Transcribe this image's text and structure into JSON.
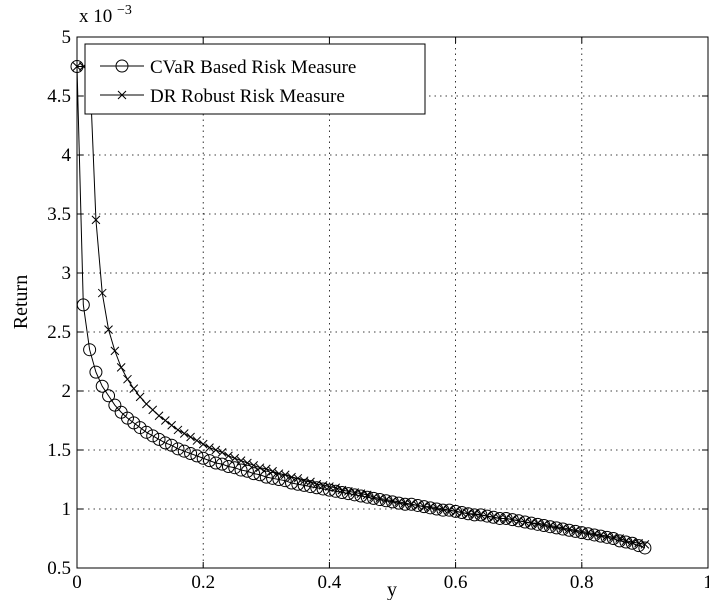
{
  "chart_data": {
    "type": "line",
    "xlabel": "y",
    "ylabel": "Return",
    "y_scale_label": "x 10",
    "y_scale_exponent": "−3",
    "xlim": [
      0,
      1
    ],
    "ylim": [
      0.5,
      5
    ],
    "grid": true,
    "legend_position": "top-left",
    "xticks": [
      "0",
      "0.2",
      "0.4",
      "0.6",
      "0.8",
      "1"
    ],
    "yticks": [
      "0.5",
      "1",
      "1.5",
      "2",
      "2.5",
      "3",
      "3.5",
      "4",
      "4.5",
      "5"
    ],
    "series": [
      {
        "name": "CVaR Based Risk Measure",
        "marker": "circle",
        "x": [
          0,
          0.01,
          0.02,
          0.03,
          0.04,
          0.05,
          0.06,
          0.07,
          0.08,
          0.09,
          0.1,
          0.11,
          0.12,
          0.13,
          0.14,
          0.15,
          0.16,
          0.17,
          0.18,
          0.19,
          0.2,
          0.21,
          0.22,
          0.23,
          0.24,
          0.25,
          0.26,
          0.27,
          0.28,
          0.29,
          0.3,
          0.31,
          0.32,
          0.33,
          0.34,
          0.35,
          0.36,
          0.37,
          0.38,
          0.39,
          0.4,
          0.41,
          0.42,
          0.43,
          0.44,
          0.45,
          0.46,
          0.47,
          0.48,
          0.49,
          0.5,
          0.51,
          0.52,
          0.53,
          0.54,
          0.55,
          0.56,
          0.57,
          0.58,
          0.59,
          0.6,
          0.61,
          0.62,
          0.63,
          0.64,
          0.65,
          0.66,
          0.67,
          0.68,
          0.69,
          0.7,
          0.71,
          0.72,
          0.73,
          0.74,
          0.75,
          0.76,
          0.77,
          0.78,
          0.79,
          0.8,
          0.81,
          0.82,
          0.83,
          0.84,
          0.85,
          0.86,
          0.87,
          0.88,
          0.89,
          0.9
        ],
        "values": [
          4.75,
          2.73,
          2.35,
          2.16,
          2.04,
          1.96,
          1.88,
          1.82,
          1.77,
          1.73,
          1.69,
          1.65,
          1.62,
          1.59,
          1.56,
          1.54,
          1.51,
          1.49,
          1.47,
          1.45,
          1.43,
          1.41,
          1.39,
          1.38,
          1.36,
          1.35,
          1.33,
          1.32,
          1.3,
          1.29,
          1.27,
          1.26,
          1.25,
          1.24,
          1.22,
          1.21,
          1.2,
          1.19,
          1.18,
          1.17,
          1.16,
          1.15,
          1.14,
          1.13,
          1.12,
          1.11,
          1.1,
          1.09,
          1.08,
          1.07,
          1.06,
          1.05,
          1.04,
          1.04,
          1.03,
          1.02,
          1.01,
          1.0,
          0.99,
          0.99,
          0.98,
          0.97,
          0.96,
          0.95,
          0.95,
          0.94,
          0.93,
          0.92,
          0.92,
          0.91,
          0.9,
          0.89,
          0.88,
          0.87,
          0.86,
          0.85,
          0.84,
          0.83,
          0.82,
          0.81,
          0.8,
          0.79,
          0.78,
          0.77,
          0.76,
          0.75,
          0.73,
          0.72,
          0.71,
          0.69,
          0.67
        ]
      },
      {
        "name": "DR Robust Risk Measure",
        "marker": "cross",
        "x": [
          0,
          0.01,
          0.02,
          0.03,
          0.04,
          0.05,
          0.06,
          0.07,
          0.08,
          0.09,
          0.1,
          0.11,
          0.12,
          0.13,
          0.14,
          0.15,
          0.16,
          0.17,
          0.18,
          0.19,
          0.2,
          0.21,
          0.22,
          0.23,
          0.24,
          0.25,
          0.26,
          0.27,
          0.28,
          0.29,
          0.3,
          0.31,
          0.32,
          0.33,
          0.34,
          0.35,
          0.36,
          0.37,
          0.38,
          0.39,
          0.4,
          0.41,
          0.42,
          0.43,
          0.44,
          0.45,
          0.46,
          0.47,
          0.48,
          0.49,
          0.5,
          0.51,
          0.52,
          0.53,
          0.54,
          0.55,
          0.56,
          0.57,
          0.58,
          0.59,
          0.6,
          0.61,
          0.62,
          0.63,
          0.64,
          0.65,
          0.66,
          0.67,
          0.68,
          0.69,
          0.7,
          0.71,
          0.72,
          0.73,
          0.74,
          0.75,
          0.76,
          0.77,
          0.78,
          0.79,
          0.8,
          0.81,
          0.82,
          0.83,
          0.84,
          0.85,
          0.86,
          0.87,
          0.88,
          0.89,
          0.9
        ],
        "values": [
          4.75,
          4.75,
          4.75,
          3.45,
          2.83,
          2.52,
          2.34,
          2.2,
          2.1,
          2.02,
          1.95,
          1.89,
          1.84,
          1.79,
          1.75,
          1.71,
          1.67,
          1.64,
          1.61,
          1.58,
          1.55,
          1.52,
          1.5,
          1.48,
          1.45,
          1.43,
          1.41,
          1.39,
          1.37,
          1.35,
          1.34,
          1.32,
          1.3,
          1.29,
          1.27,
          1.26,
          1.24,
          1.23,
          1.21,
          1.2,
          1.19,
          1.18,
          1.16,
          1.15,
          1.14,
          1.13,
          1.12,
          1.1,
          1.09,
          1.08,
          1.07,
          1.06,
          1.05,
          1.04,
          1.03,
          1.02,
          1.02,
          1.01,
          1.0,
          0.99,
          0.98,
          0.97,
          0.96,
          0.96,
          0.95,
          0.94,
          0.93,
          0.92,
          0.92,
          0.91,
          0.9,
          0.89,
          0.88,
          0.88,
          0.87,
          0.86,
          0.85,
          0.84,
          0.83,
          0.82,
          0.81,
          0.8,
          0.79,
          0.78,
          0.77,
          0.76,
          0.75,
          0.73,
          0.72,
          0.71,
          0.7
        ]
      }
    ]
  }
}
